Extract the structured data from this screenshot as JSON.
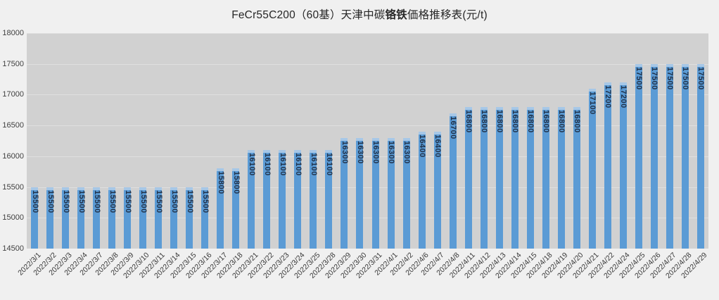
{
  "title": {
    "prefix": "FeCr55C200（60基）天津中碳",
    "emphasis": "铬铁",
    "suffix": "価格推移表(元/t)"
  },
  "chart_data": {
    "type": "bar",
    "title": "FeCr55C200（60基）天津中碳铬铁価格推移表(元/t)",
    "xlabel": "",
    "ylabel": "",
    "unit": "元/t",
    "ylim": [
      14500,
      18000
    ],
    "ytick_step": 500,
    "yticks": [
      18000,
      17500,
      17000,
      16500,
      16000,
      15500,
      15000,
      14500
    ],
    "grid": true,
    "legend": false,
    "data_labels": true,
    "data_label_rotation": 90,
    "x_label_rotation": -45,
    "categories": [
      "2022/3/1",
      "2022/3/2",
      "2022/3/3",
      "2022/3/4",
      "2022/3/7",
      "2022/3/8",
      "2022/3/9",
      "2022/3/10",
      "2022/3/11",
      "2022/3/14",
      "2022/3/15",
      "2022/3/16",
      "2022/3/17",
      "2022/3/18",
      "2022/3/21",
      "2022/3/22",
      "2022/3/23",
      "2022/3/24",
      "2022/3/25",
      "2022/3/28",
      "2022/3/29",
      "2022/3/30",
      "2022/3/31",
      "2022/4/1",
      "2022/4/2",
      "2022/4/6",
      "2022/4/7",
      "2022/4/8",
      "2022/4/11",
      "2022/4/12",
      "2022/4/13",
      "2022/4/14",
      "2022/4/15",
      "2022/4/18",
      "2022/4/19",
      "2022/4/20",
      "2022/4/21",
      "2022/4/22",
      "2022/4/24",
      "2022/4/25",
      "2022/4/26",
      "2022/4/27",
      "2022/4/28",
      "2022/4/29"
    ],
    "values": [
      15500,
      15500,
      15500,
      15500,
      15500,
      15500,
      15500,
      15500,
      15500,
      15500,
      15500,
      15500,
      15800,
      15800,
      16100,
      16100,
      16100,
      16100,
      16100,
      16100,
      16300,
      16300,
      16300,
      16300,
      16300,
      16400,
      16400,
      16700,
      16800,
      16800,
      16800,
      16800,
      16800,
      16800,
      16800,
      16800,
      17100,
      17200,
      17200,
      17500,
      17500,
      17500,
      17500,
      17500
    ],
    "colors": {
      "bar": "#5B9BD5",
      "bar_cap": "#A6C7E7",
      "data_label": "#1F3048",
      "plot_background": "#D1D1D1",
      "page_background": "#F0F0F0",
      "gridline": "#DFDFDF",
      "axis_text": "#404040",
      "title_text": "#262626"
    }
  }
}
